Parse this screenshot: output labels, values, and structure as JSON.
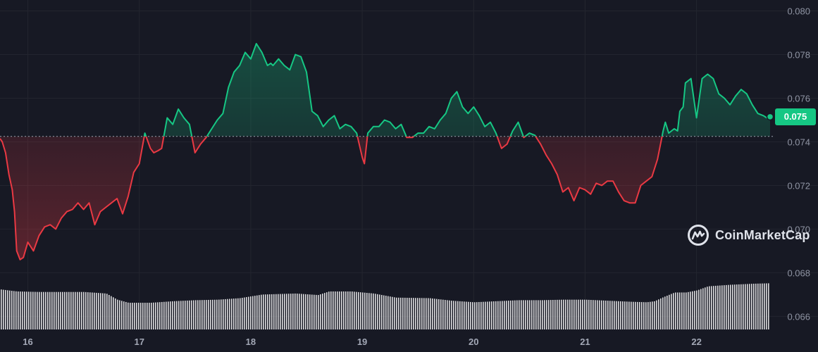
{
  "chart_data": {
    "type": "line",
    "title": "",
    "xlabel": "",
    "ylabel": "",
    "x_ticks": [
      "16",
      "17",
      "18",
      "19",
      "20",
      "21",
      "22"
    ],
    "y_ticks": [
      "0.080",
      "0.078",
      "0.076",
      "0.075",
      "0.074",
      "0.072",
      "0.070",
      "0.068",
      "0.066"
    ],
    "y_tick_values": [
      0.08,
      0.078,
      0.076,
      0.074,
      0.072,
      0.07,
      0.068,
      0.066
    ],
    "ylim": [
      0.0654,
      0.0805
    ],
    "xlim_days": [
      15.75,
      22.66
    ],
    "grid": true,
    "baseline": 0.07425,
    "current_price": "0.075",
    "current_price_value": 0.07515,
    "colors": {
      "up": "#16c784",
      "down": "#ea3943",
      "volume": "#ffffff",
      "grid": "#23252f"
    },
    "series": [
      {
        "x": [
          15.75,
          15.77,
          15.8,
          15.83,
          15.86,
          15.88,
          15.9,
          15.93,
          15.96,
          16.0,
          16.05,
          16.1,
          16.15,
          16.2,
          16.25,
          16.3,
          16.35,
          16.4,
          16.45,
          16.5,
          16.55,
          16.6,
          16.65,
          16.7,
          16.75,
          16.8,
          16.85,
          16.9,
          16.95,
          17.0,
          17.05,
          17.1,
          17.13,
          17.17,
          17.2,
          17.25,
          17.3,
          17.35,
          17.4,
          17.45,
          17.5,
          17.55,
          17.6,
          17.65,
          17.7,
          17.75,
          17.8,
          17.85,
          17.9,
          17.95,
          18.0,
          18.05,
          18.1,
          18.15,
          18.18,
          18.2,
          18.25,
          18.3,
          18.35,
          18.4,
          18.45,
          18.5,
          18.55,
          18.6,
          18.65,
          18.7,
          18.75,
          18.8,
          18.85,
          18.9,
          18.95,
          19.0,
          19.02,
          19.05,
          19.1,
          19.15,
          19.2,
          19.25,
          19.3,
          19.35,
          19.4,
          19.45,
          19.5,
          19.55,
          19.6,
          19.65,
          19.7,
          19.75,
          19.8,
          19.85,
          19.9,
          19.95,
          20.0,
          20.05,
          20.1,
          20.15,
          20.2,
          20.25,
          20.3,
          20.35,
          20.4,
          20.45,
          20.5,
          20.55,
          20.6,
          20.65,
          20.7,
          20.75,
          20.8,
          20.85,
          20.9,
          20.95,
          21.0,
          21.05,
          21.1,
          21.15,
          21.2,
          21.25,
          21.3,
          21.35,
          21.4,
          21.45,
          21.5,
          21.55,
          21.6,
          21.65,
          21.7,
          21.72,
          21.75,
          21.8,
          21.83,
          21.85,
          21.88,
          21.9,
          21.95,
          22.0,
          22.05,
          22.1,
          22.15,
          22.2,
          22.25,
          22.3,
          22.35,
          22.4,
          22.45,
          22.5,
          22.55,
          22.6,
          22.63,
          22.66
        ],
        "values": [
          0.07415,
          0.074,
          0.0735,
          0.0725,
          0.0718,
          0.0708,
          0.069,
          0.0686,
          0.0687,
          0.0694,
          0.069,
          0.0697,
          0.0701,
          0.0702,
          0.07,
          0.0705,
          0.0708,
          0.0709,
          0.0712,
          0.0709,
          0.0712,
          0.0702,
          0.0708,
          0.071,
          0.0712,
          0.0714,
          0.0707,
          0.0715,
          0.0726,
          0.073,
          0.0744,
          0.0737,
          0.0735,
          0.0736,
          0.0737,
          0.0751,
          0.0748,
          0.0755,
          0.0751,
          0.0748,
          0.0735,
          0.0739,
          0.0742,
          0.0746,
          0.075,
          0.0753,
          0.0765,
          0.0772,
          0.0775,
          0.0781,
          0.0778,
          0.0785,
          0.0781,
          0.0775,
          0.0776,
          0.0775,
          0.0778,
          0.0775,
          0.0773,
          0.078,
          0.0779,
          0.0772,
          0.0754,
          0.0752,
          0.0747,
          0.075,
          0.0752,
          0.0746,
          0.0748,
          0.0747,
          0.0744,
          0.0733,
          0.073,
          0.0744,
          0.0747,
          0.0747,
          0.075,
          0.0749,
          0.0746,
          0.0748,
          0.0742,
          0.0742,
          0.0744,
          0.0744,
          0.0747,
          0.0746,
          0.075,
          0.0753,
          0.076,
          0.0763,
          0.0756,
          0.0753,
          0.0756,
          0.0752,
          0.0747,
          0.0749,
          0.0744,
          0.0737,
          0.0739,
          0.0745,
          0.0749,
          0.0742,
          0.0744,
          0.0743,
          0.0739,
          0.0734,
          0.073,
          0.0725,
          0.0717,
          0.0719,
          0.0713,
          0.0719,
          0.0718,
          0.0716,
          0.0721,
          0.072,
          0.0722,
          0.0722,
          0.0717,
          0.0713,
          0.0712,
          0.0712,
          0.072,
          0.0722,
          0.0724,
          0.0732,
          0.0745,
          0.0749,
          0.0744,
          0.0746,
          0.0745,
          0.0754,
          0.0756,
          0.0767,
          0.0769,
          0.0751,
          0.0769,
          0.0771,
          0.0769,
          0.0762,
          0.076,
          0.0757,
          0.0761,
          0.0764,
          0.0762,
          0.0757,
          0.0753,
          0.0752,
          0.0751,
          0.07515
        ]
      }
    ],
    "volume": {
      "x": [
        15.75,
        15.9,
        16.1,
        16.5,
        16.7,
        16.8,
        16.9,
        17.1,
        17.3,
        17.5,
        17.7,
        17.9,
        18.1,
        18.4,
        18.6,
        18.7,
        18.9,
        19.1,
        19.3,
        19.6,
        19.8,
        20.0,
        20.2,
        20.4,
        20.6,
        20.8,
        21.0,
        21.2,
        21.4,
        21.55,
        21.62,
        21.7,
        21.8,
        21.9,
        22.0,
        22.1,
        22.3,
        22.5,
        22.66
      ],
      "level": [
        0.78,
        0.74,
        0.73,
        0.73,
        0.7,
        0.58,
        0.52,
        0.52,
        0.55,
        0.57,
        0.58,
        0.61,
        0.68,
        0.7,
        0.67,
        0.74,
        0.74,
        0.7,
        0.62,
        0.61,
        0.56,
        0.53,
        0.55,
        0.57,
        0.57,
        0.58,
        0.58,
        0.56,
        0.54,
        0.53,
        0.55,
        0.63,
        0.72,
        0.72,
        0.76,
        0.84,
        0.87,
        0.89,
        0.9
      ]
    }
  },
  "watermark": {
    "label": "CoinMarketCap",
    "icon": "coinmarketcap-logo"
  }
}
